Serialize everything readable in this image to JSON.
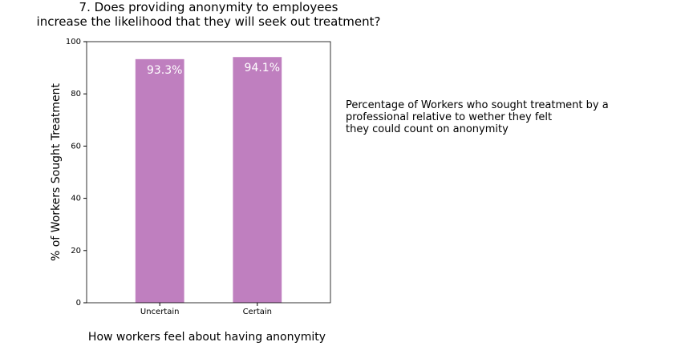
{
  "chart_data": {
    "type": "bar",
    "title": "7. Does providing anonymity to employees\nincrease the likelihood that they will seek out treatment?",
    "categories": [
      "Uncertain",
      "Certain"
    ],
    "values": [
      93.3,
      94.1
    ],
    "value_labels": [
      "93.3%",
      "94.1%"
    ],
    "color": "#bf7fbf",
    "ylim": [
      0,
      100
    ],
    "yticks": [
      0,
      20,
      40,
      60,
      80,
      100
    ],
    "y_label": "% of Workers Sought Treatment",
    "x_label": "How workers feel about having anonymity",
    "annotation": "Percentage of Workers who sought treatment by a\nprofessional relative to wether they felt\nthey could count on anonymity",
    "grid": false
  }
}
